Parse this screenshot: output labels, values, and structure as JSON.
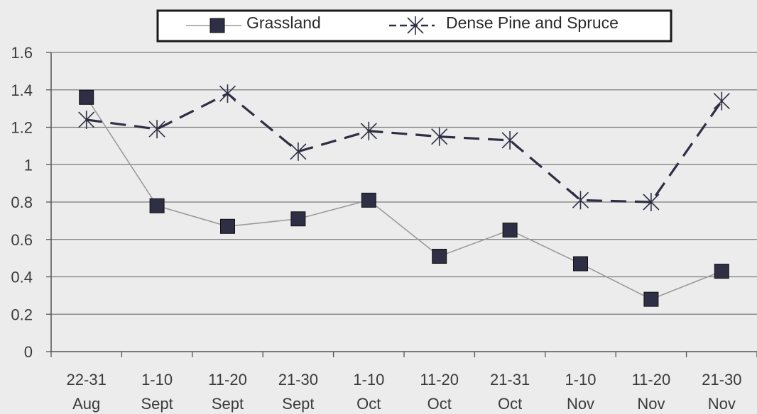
{
  "chart_data": {
    "type": "line",
    "title": "",
    "xlabel": "",
    "ylabel": "",
    "categories": [
      [
        "22-31",
        "Aug"
      ],
      [
        "1-10",
        "Sept"
      ],
      [
        "11-20",
        "Sept"
      ],
      [
        "21-30",
        "Sept"
      ],
      [
        "1-10",
        "Oct"
      ],
      [
        "11-20",
        "Oct"
      ],
      [
        "21-31",
        "Oct"
      ],
      [
        "1-10",
        "Nov"
      ],
      [
        "11-20",
        "Nov"
      ],
      [
        "21-30",
        "Nov"
      ]
    ],
    "ylim": [
      0,
      1.6
    ],
    "yticks": [
      0,
      0.2,
      0.4,
      0.6,
      0.8,
      1,
      1.2,
      1.4,
      1.6
    ],
    "grid": true,
    "legend_position": "top",
    "series": [
      {
        "name": "Grassland",
        "marker": "square",
        "line_style": "solid",
        "color": "#2e2e44",
        "line_color": "#9a9a9a",
        "values": [
          1.36,
          0.78,
          0.67,
          0.71,
          0.81,
          0.51,
          0.65,
          0.47,
          0.28,
          0.43
        ]
      },
      {
        "name": "Dense Pine and Spruce",
        "marker": "asterisk",
        "line_style": "dashed",
        "color": "#2e2e44",
        "values": [
          1.24,
          1.19,
          1.38,
          1.07,
          1.18,
          1.15,
          1.13,
          0.81,
          0.8,
          1.34
        ]
      }
    ]
  }
}
